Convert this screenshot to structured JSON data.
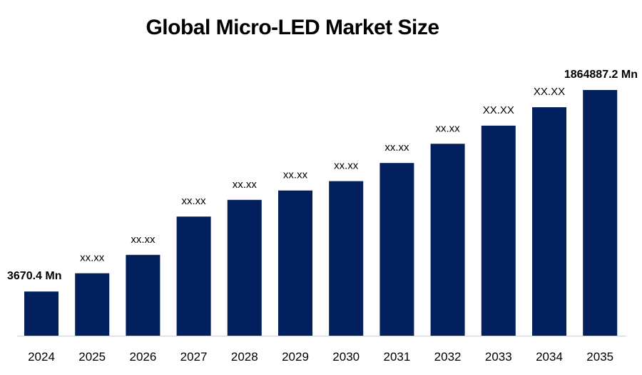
{
  "chart_data": {
    "type": "bar",
    "title": "Global Micro-LED Market Size",
    "categories": [
      "2024",
      "2025",
      "2026",
      "2027",
      "2028",
      "2029",
      "2030",
      "2031",
      "2032",
      "2033",
      "2034",
      "2035"
    ],
    "values": [
      3670.4,
      null,
      null,
      null,
      null,
      null,
      null,
      null,
      null,
      null,
      null,
      1864887.2
    ],
    "relative_bar_heights": [
      0.18,
      0.254,
      0.329,
      0.485,
      0.553,
      0.591,
      0.629,
      0.703,
      0.781,
      0.855,
      0.93,
      1.0
    ],
    "data_labels": [
      "3670.4 Mn",
      "xx.xx",
      "xx.xx",
      "xx.xx",
      "xx.xx",
      "xx.xx",
      "xx.xx",
      "xx.xx",
      "xx.xx",
      "XX.XX",
      "XX.XX",
      "1864887.2 Mn"
    ],
    "bold_labels": [
      true,
      false,
      false,
      false,
      false,
      false,
      false,
      false,
      false,
      false,
      false,
      true
    ],
    "xlabel": "",
    "ylabel": "",
    "grid": false,
    "legend": "none",
    "bar_color": "#03205E",
    "axis_color": "#D9D9D9"
  }
}
